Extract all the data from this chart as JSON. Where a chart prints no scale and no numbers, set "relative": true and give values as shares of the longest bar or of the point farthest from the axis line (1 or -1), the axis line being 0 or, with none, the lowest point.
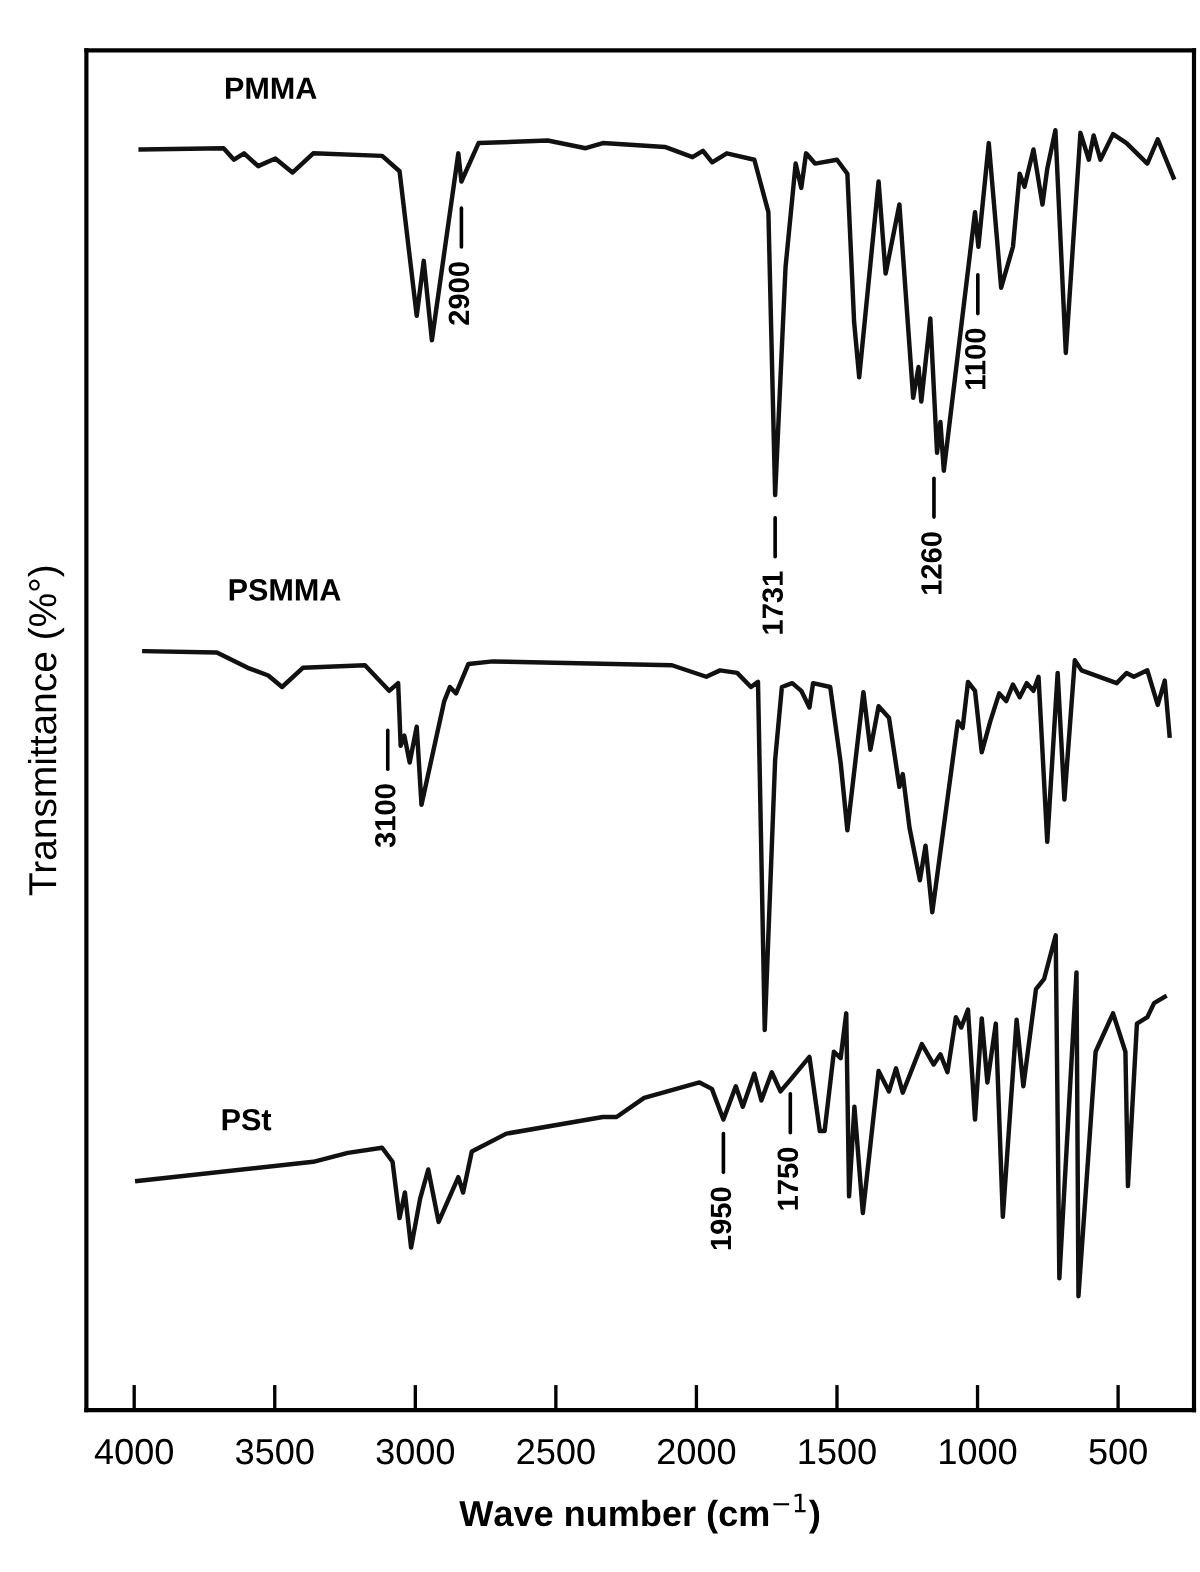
{
  "chart_data": {
    "type": "line",
    "relative": true,
    "xlabel": "Wave number (cm$^{−1}$)",
    "ylabel": "Transmittance (%°)",
    "xlim": [
      4170,
      230
    ],
    "xticks": [
      4000,
      3500,
      3000,
      2500,
      2000,
      1500,
      1000,
      500
    ],
    "grid": false,
    "legend": false,
    "marker": "none",
    "line_style": "solid",
    "tick_labels": "x",
    "series": [
      {
        "name": "PMMA",
        "color": "#111111",
        "x": [
          3977,
          3682,
          3645,
          3609,
          3559,
          3498,
          3437,
          3363,
          3118,
          3056,
          2995,
          2970,
          2941,
          2847,
          2836,
          2775,
          2529,
          2394,
          2333,
          2112,
          2014,
          1977,
          1944,
          1892,
          1794,
          1744,
          1720,
          1683,
          1647,
          1627,
          1610,
          1578,
          1500,
          1463,
          1439,
          1421,
          1352,
          1327,
          1278,
          1229,
          1210,
          1200,
          1168,
          1144,
          1132,
          1120,
          1009,
          997,
          960,
          916,
          874,
          850,
          833,
          801,
          769,
          752,
          723,
          686,
          634,
          604,
          587,
          563,
          518,
          470,
          433,
          396,
          359,
          303
        ],
        "values": [
          0.985,
          0.986,
          0.977,
          0.982,
          0.972,
          0.978,
          0.967,
          0.982,
          0.98,
          0.968,
          0.855,
          0.898,
          0.836,
          0.982,
          0.96,
          0.99,
          0.992,
          0.986,
          0.99,
          0.987,
          0.979,
          0.984,
          0.975,
          0.982,
          0.977,
          0.936,
          0.715,
          0.893,
          0.974,
          0.955,
          0.982,
          0.974,
          0.977,
          0.966,
          0.85,
          0.807,
          0.96,
          0.888,
          0.942,
          0.791,
          0.815,
          0.788,
          0.853,
          0.748,
          0.772,
          0.734,
          0.936,
          0.909,
          0.99,
          0.877,
          0.909,
          0.966,
          0.956,
          0.985,
          0.942,
          0.97,
          1.0,
          0.826,
          0.998,
          0.977,
          0.996,
          0.977,
          0.997,
          0.99,
          0.982,
          0.974,
          0.993,
          0.963
        ]
      },
      {
        "name": "PSMMA",
        "color": "#111111",
        "x": [
          3964,
          3706,
          3596,
          3523,
          3474,
          3400,
          3179,
          3093,
          3061,
          3052,
          3039,
          3020,
          2995,
          2978,
          2897,
          2877,
          2855,
          2811,
          2725,
          2087,
          1965,
          1916,
          1855,
          1806,
          1781,
          1757,
          1720,
          1696,
          1659,
          1627,
          1598,
          1585,
          1524,
          1487,
          1463,
          1406,
          1381,
          1352,
          1315,
          1278,
          1266,
          1242,
          1205,
          1185,
          1161,
          1070,
          1053,
          1034,
          1009,
          985,
          955,
          923,
          898,
          874,
          850,
          825,
          801,
          783,
          752,
          715,
          691,
          654,
          630,
          505,
          470,
          444,
          396,
          359,
          334,
          317
        ],
        "values": [
          0.593,
          0.592,
          0.58,
          0.574,
          0.565,
          0.58,
          0.582,
          0.562,
          0.568,
          0.519,
          0.527,
          0.506,
          0.534,
          0.473,
          0.554,
          0.565,
          0.56,
          0.583,
          0.585,
          0.582,
          0.573,
          0.578,
          0.576,
          0.565,
          0.569,
          0.297,
          0.508,
          0.565,
          0.568,
          0.562,
          0.549,
          0.568,
          0.565,
          0.506,
          0.453,
          0.561,
          0.516,
          0.55,
          0.541,
          0.487,
          0.497,
          0.455,
          0.414,
          0.441,
          0.389,
          0.538,
          0.533,
          0.569,
          0.562,
          0.514,
          0.538,
          0.56,
          0.554,
          0.567,
          0.557,
          0.568,
          0.562,
          0.573,
          0.444,
          0.576,
          0.477,
          0.586,
          0.578,
          0.568,
          0.576,
          0.573,
          0.578,
          0.551,
          0.57,
          0.527
        ]
      },
      {
        "name": "PSt",
        "color": "#111111",
        "x": [
          3989,
          3363,
          3240,
          3118,
          3081,
          3056,
          3037,
          3015,
          2983,
          2954,
          2917,
          2847,
          2830,
          2799,
          2676,
          2333,
          2284,
          2186,
          1989,
          1945,
          1904,
          1860,
          1835,
          1794,
          1769,
          1732,
          1701,
          1666,
          1598,
          1561,
          1544,
          1511,
          1487,
          1467,
          1457,
          1438,
          1408,
          1352,
          1315,
          1290,
          1266,
          1198,
          1156,
          1132,
          1107,
          1077,
          1058,
          1034,
          1009,
          985,
          965,
          935,
          910,
          861,
          837,
          792,
          763,
          722,
          709,
          648,
          641,
          580,
          518,
          474,
          465,
          433,
          396,
          372,
          334
        ],
        "values": [
          0.179,
          0.194,
          0.201,
          0.205,
          0.194,
          0.15,
          0.17,
          0.127,
          0.165,
          0.188,
          0.147,
          0.182,
          0.17,
          0.202,
          0.216,
          0.229,
          0.229,
          0.244,
          0.256,
          0.251,
          0.227,
          0.253,
          0.237,
          0.263,
          0.242,
          0.264,
          0.249,
          0.258,
          0.276,
          0.218,
          0.218,
          0.28,
          0.275,
          0.31,
          0.167,
          0.237,
          0.154,
          0.265,
          0.249,
          0.267,
          0.248,
          0.286,
          0.27,
          0.278,
          0.264,
          0.307,
          0.299,
          0.313,
          0.227,
          0.306,
          0.256,
          0.302,
          0.151,
          0.305,
          0.253,
          0.329,
          0.337,
          0.371,
          0.103,
          0.342,
          0.089,
          0.28,
          0.31,
          0.28,
          0.175,
          0.302,
          0.307,
          0.318,
          0.323
        ]
      }
    ],
    "annotations": [
      {
        "text": "2900",
        "x": 2836,
        "y": 0.95
      },
      {
        "text": "1731",
        "x": 1720,
        "y": 0.708
      },
      {
        "text": "1260",
        "x": 1155,
        "y": 0.739
      },
      {
        "text": "1100",
        "x": 999,
        "y": 0.898
      },
      {
        "text": "3100",
        "x": 3098,
        "y": 0.542
      },
      {
        "text": "1950",
        "x": 1904,
        "y": 0.227
      },
      {
        "text": "1750",
        "x": 1666,
        "y": 0.258
      }
    ]
  }
}
